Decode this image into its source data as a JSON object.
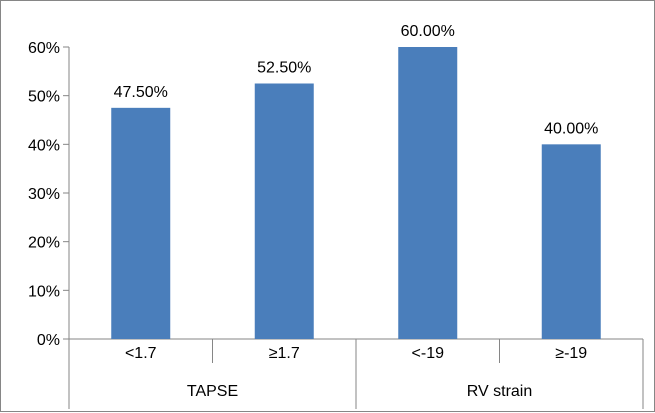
{
  "chart_data": {
    "type": "bar",
    "title": "",
    "xlabel": "",
    "ylabel": "",
    "ylim": [
      0,
      60
    ],
    "yticks": [
      "0%",
      "10%",
      "20%",
      "30%",
      "40%",
      "50%",
      "60%"
    ],
    "grid": false,
    "legend": "none",
    "groups": [
      {
        "label": "TAPSE",
        "categories": [
          "<1.7",
          "≥1.7"
        ]
      },
      {
        "label": "RV strain",
        "categories": [
          "<-19",
          "≥-19"
        ]
      }
    ],
    "categories": [
      "<1.7",
      "≥1.7",
      "<-19",
      "≥-19"
    ],
    "values": [
      47.5,
      52.5,
      60.0,
      40.0
    ],
    "data_labels": [
      "47.50%",
      "52.50%",
      "60.00%",
      "40.00%"
    ],
    "bar_color": "#4a7ebb"
  }
}
